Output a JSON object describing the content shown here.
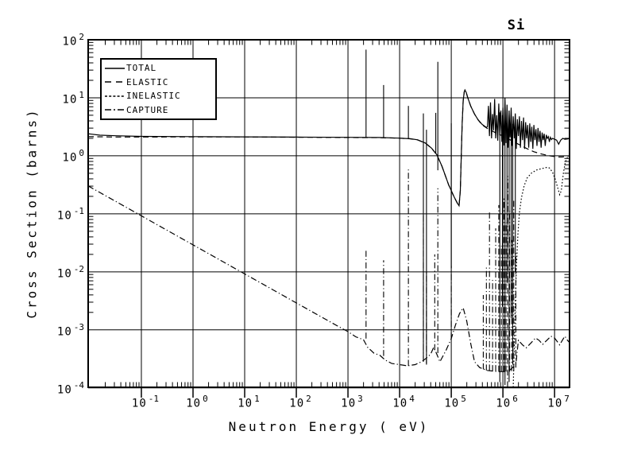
{
  "title": "Si",
  "axes": {
    "x_label": "Neutron Energy ( eV)",
    "y_label": "Cross Section (barns)",
    "x_exponents": [
      -1,
      0,
      1,
      2,
      3,
      4,
      5,
      6,
      7
    ],
    "y_exponents": [
      2,
      1,
      0,
      -1,
      -2,
      -3,
      -4
    ],
    "x_log_range": [
      -2.03,
      7.29
    ],
    "y_log_range": [
      -3.99,
      2.0
    ]
  },
  "legend": {
    "items": [
      {
        "label": "TOTAL",
        "dash": "",
        "sample_dash": ""
      },
      {
        "label": "ELASTIC",
        "dash": "7 4.5",
        "sample_dash": "8 6"
      },
      {
        "label": "INELASTIC",
        "dash": "1.6 2.4",
        "sample_dash": "3 2.2"
      },
      {
        "label": "CAPTURE",
        "dash": "7.5 3 1.2 3",
        "sample_dash": "8 3 2 3"
      }
    ]
  },
  "colors": {
    "line": "#000000",
    "background": "#ffffff"
  },
  "chart_data": {
    "type": "line",
    "title": "Si",
    "xlabel": "Neutron Energy ( eV)",
    "ylabel": "Cross Section (barns)",
    "xscale": "log",
    "yscale": "log",
    "xlim": [
      0.01,
      20000000.0
    ],
    "ylim": [
      0.0001,
      100.0
    ],
    "grid": "major-both",
    "legend_position": "upper-left",
    "units_note": "points are [log10(E eV), log10(sigma barns)]",
    "series": [
      {
        "name": "TOTAL",
        "style": "solid",
        "points": [
          [
            -2.03,
            0.38
          ],
          [
            -1.8,
            0.355
          ],
          [
            -1.5,
            0.345
          ],
          [
            -1,
            0.335
          ],
          [
            0,
            0.33
          ],
          [
            1,
            0.327
          ],
          [
            2,
            0.322
          ],
          [
            3,
            0.318
          ],
          [
            3.6,
            0.315
          ],
          [
            4,
            0.305
          ],
          [
            4.2,
            0.295
          ],
          [
            4.35,
            0.275
          ],
          [
            4.5,
            0.22
          ],
          [
            4.62,
            0.13
          ],
          [
            4.72,
            0.02
          ],
          [
            4.82,
            -0.18
          ],
          [
            4.95,
            -0.5
          ],
          [
            5.05,
            -0.7
          ],
          [
            5.12,
            -0.82
          ],
          [
            5.15,
            -0.86
          ],
          [
            5.175,
            -0.6
          ],
          [
            5.19,
            -0.1
          ],
          [
            5.21,
            0.55
          ],
          [
            5.23,
            0.95
          ],
          [
            5.25,
            1.1
          ],
          [
            5.265,
            1.135
          ],
          [
            5.29,
            1.09
          ],
          [
            5.32,
            1.0
          ],
          [
            5.38,
            0.85
          ],
          [
            5.45,
            0.72
          ],
          [
            5.52,
            0.62
          ],
          [
            5.6,
            0.54
          ],
          [
            5.68,
            0.49
          ],
          [
            5.7,
            0.5
          ],
          [
            5.72,
            0.86
          ],
          [
            5.74,
            0.34
          ],
          [
            5.76,
            0.92
          ],
          [
            5.78,
            0.3
          ],
          [
            5.8,
            0.72
          ],
          [
            5.82,
            0.44
          ],
          [
            5.84,
            0.98
          ],
          [
            5.86,
            0.3
          ],
          [
            5.88,
            0.7
          ],
          [
            5.9,
            0.26
          ],
          [
            5.92,
            0.9
          ],
          [
            5.94,
            0.35
          ],
          [
            5.96,
            0.78
          ],
          [
            5.98,
            0.24
          ],
          [
            6,
            0.83
          ],
          [
            6.02,
            0.18
          ],
          [
            6.04,
            1.0
          ],
          [
            6.06,
            0.22
          ],
          [
            6.08,
            0.88
          ],
          [
            6.1,
            0.14
          ],
          [
            6.12,
            0.78
          ],
          [
            6.14,
            0.32
          ],
          [
            6.16,
            0.83
          ],
          [
            6.18,
            0.17
          ],
          [
            6.2,
            0.68
          ],
          [
            6.22,
            0.3
          ],
          [
            6.24,
            0.73
          ],
          [
            6.26,
            0.12
          ],
          [
            6.28,
            0.63
          ],
          [
            6.3,
            0.34
          ],
          [
            6.32,
            0.68
          ],
          [
            6.34,
            0.14
          ],
          [
            6.36,
            0.6
          ],
          [
            6.38,
            0.27
          ],
          [
            6.4,
            0.66
          ],
          [
            6.42,
            0.12
          ],
          [
            6.44,
            0.58
          ],
          [
            6.46,
            0.3
          ],
          [
            6.48,
            0.53
          ],
          [
            6.5,
            0.14
          ],
          [
            6.52,
            0.56
          ],
          [
            6.54,
            0.24
          ],
          [
            6.56,
            0.5
          ],
          [
            6.58,
            0.12
          ],
          [
            6.6,
            0.53
          ],
          [
            6.62,
            0.27
          ],
          [
            6.64,
            0.46
          ],
          [
            6.66,
            0.17
          ],
          [
            6.68,
            0.48
          ],
          [
            6.7,
            0.24
          ],
          [
            6.72,
            0.43
          ],
          [
            6.74,
            0.14
          ],
          [
            6.76,
            0.4
          ],
          [
            6.78,
            0.27
          ],
          [
            6.8,
            0.38
          ],
          [
            6.82,
            0.17
          ],
          [
            6.84,
            0.36
          ],
          [
            6.86,
            0.3
          ],
          [
            6.88,
            0.33
          ],
          [
            6.9,
            0.24
          ],
          [
            6.92,
            0.32
          ],
          [
            6.94,
            0.28
          ],
          [
            6.96,
            0.3
          ],
          [
            7,
            0.285
          ],
          [
            7.04,
            0.27
          ],
          [
            7.08,
            0.2
          ],
          [
            7.12,
            0.27
          ],
          [
            7.16,
            0.3
          ],
          [
            7.2,
            0.285
          ],
          [
            7.25,
            0.29
          ],
          [
            7.29,
            0.3
          ]
        ]
      },
      {
        "name": "ELASTIC",
        "style": "dash",
        "points": [
          [
            -2.03,
            0.33
          ],
          [
            -1.5,
            0.323
          ],
          [
            -1,
            0.323
          ],
          [
            0,
            0.327
          ],
          [
            1,
            0.325
          ],
          [
            2,
            0.32
          ],
          [
            3,
            0.316
          ],
          [
            3.6,
            0.313
          ],
          [
            4,
            0.303
          ],
          [
            4.2,
            0.293
          ],
          [
            4.35,
            0.273
          ],
          [
            4.5,
            0.218
          ],
          [
            4.62,
            0.128
          ],
          [
            4.72,
            0.018
          ],
          [
            4.82,
            -0.182
          ],
          [
            4.95,
            -0.502
          ],
          [
            5.05,
            -0.702
          ],
          [
            5.12,
            -0.822
          ],
          [
            5.15,
            -0.862
          ],
          [
            5.175,
            -0.602
          ],
          [
            5.19,
            -0.102
          ],
          [
            5.21,
            0.548
          ],
          [
            5.23,
            0.948
          ],
          [
            5.25,
            1.098
          ],
          [
            5.265,
            1.133
          ],
          [
            5.29,
            1.088
          ],
          [
            5.32,
            0.998
          ],
          [
            5.38,
            0.848
          ],
          [
            5.45,
            0.718
          ],
          [
            5.52,
            0.618
          ],
          [
            5.6,
            0.53
          ],
          [
            5.7,
            0.47
          ],
          [
            5.85,
            0.4
          ],
          [
            6,
            0.34
          ],
          [
            6.15,
            0.27
          ],
          [
            6.3,
            0.2
          ],
          [
            6.45,
            0.13
          ],
          [
            6.6,
            0.07
          ],
          [
            6.75,
            0.03
          ],
          [
            6.9,
            0.0
          ],
          [
            7.05,
            -0.02
          ],
          [
            7.15,
            -0.02
          ],
          [
            7.29,
            0.0
          ]
        ]
      },
      {
        "name": "INELASTIC",
        "style": "dot",
        "points": [
          [
            6.2,
            -3.99
          ],
          [
            6.22,
            -3.3
          ],
          [
            6.24,
            -2.55
          ],
          [
            6.26,
            -1.95
          ],
          [
            6.29,
            -1.35
          ],
          [
            6.32,
            -0.98
          ],
          [
            6.36,
            -0.72
          ],
          [
            6.41,
            -0.52
          ],
          [
            6.47,
            -0.38
          ],
          [
            6.55,
            -0.3
          ],
          [
            6.65,
            -0.245
          ],
          [
            6.75,
            -0.22
          ],
          [
            6.85,
            -0.2
          ],
          [
            6.9,
            -0.21
          ],
          [
            6.96,
            -0.28
          ],
          [
            7.02,
            -0.42
          ],
          [
            7.07,
            -0.58
          ],
          [
            7.1,
            -0.67
          ],
          [
            7.13,
            -0.6
          ],
          [
            7.17,
            -0.3
          ],
          [
            7.21,
            -0.1
          ],
          [
            7.25,
            -0.03
          ],
          [
            7.29,
            -0.01
          ]
        ]
      },
      {
        "name": "CAPTURE",
        "style": "dashdot",
        "points": [
          [
            -2.03,
            -0.52
          ],
          [
            -1,
            -1.035
          ],
          [
            0,
            -1.535
          ],
          [
            1,
            -2.035
          ],
          [
            2,
            -2.535
          ],
          [
            2.8,
            -2.935
          ],
          [
            3,
            -3.03
          ],
          [
            3.15,
            -3.12
          ],
          [
            3.3,
            -3.17
          ],
          [
            3.38,
            -3.3
          ],
          [
            3.5,
            -3.4
          ],
          [
            3.62,
            -3.44
          ],
          [
            3.72,
            -3.52
          ],
          [
            3.85,
            -3.58
          ],
          [
            4,
            -3.6
          ],
          [
            4.15,
            -3.62
          ],
          [
            4.3,
            -3.6
          ],
          [
            4.42,
            -3.55
          ],
          [
            4.5,
            -3.5
          ],
          [
            4.6,
            -3.42
          ],
          [
            4.66,
            -3.3
          ],
          [
            4.72,
            -3.42
          ],
          [
            4.78,
            -3.55
          ],
          [
            4.9,
            -3.35
          ],
          [
            5,
            -3.15
          ],
          [
            5.08,
            -2.92
          ],
          [
            5.16,
            -2.72
          ],
          [
            5.23,
            -2.62
          ],
          [
            5.3,
            -2.85
          ],
          [
            5.38,
            -3.25
          ],
          [
            5.45,
            -3.55
          ],
          [
            5.55,
            -3.65
          ],
          [
            5.7,
            -3.7
          ],
          [
            5.9,
            -3.72
          ],
          [
            6.1,
            -3.72
          ],
          [
            6.25,
            -3.6
          ],
          [
            6.3,
            -3.18
          ],
          [
            6.38,
            -3.26
          ],
          [
            6.45,
            -3.31
          ],
          [
            6.55,
            -3.22
          ],
          [
            6.63,
            -3.14
          ],
          [
            6.7,
            -3.18
          ],
          [
            6.77,
            -3.25
          ],
          [
            6.85,
            -3.18
          ],
          [
            6.93,
            -3.11
          ],
          [
            7,
            -3.14
          ],
          [
            7.05,
            -3.2
          ],
          [
            7.1,
            -3.26
          ],
          [
            7.15,
            -3.18
          ],
          [
            7.2,
            -3.11
          ],
          [
            7.25,
            -3.18
          ],
          [
            7.29,
            -3.22
          ]
        ]
      }
    ],
    "resonance_spikes": [
      {
        "series": "TOTAL",
        "x": 3.35,
        "y0": 0.315,
        "y1": 1.83
      },
      {
        "series": "TOTAL",
        "x": 3.69,
        "y0": 0.315,
        "y1": 1.22
      },
      {
        "series": "TOTAL",
        "x": 4.17,
        "y0": 0.3,
        "y1": 0.86
      },
      {
        "series": "TOTAL",
        "x": 4.46,
        "y0": -3.5,
        "y1": 0.73
      },
      {
        "series": "TOTAL",
        "x": 4.52,
        "y0": -3.6,
        "y1": 0.45
      },
      {
        "series": "TOTAL",
        "x": 4.7,
        "y0": 0.05,
        "y1": 0.74
      },
      {
        "series": "TOTAL",
        "x": 4.74,
        "y0": -0.25,
        "y1": 1.62
      },
      {
        "series": "TOTAL",
        "x": 5.0,
        "y0": -1.93,
        "y1": 0.56
      },
      {
        "series": "TOTAL",
        "x": 5.94,
        "y0": -3.9,
        "y1": 0.75
      },
      {
        "series": "TOTAL",
        "x": 5.99,
        "y0": -2.6,
        "y1": 0.7
      },
      {
        "series": "TOTAL",
        "x": 6.04,
        "y0": -3.95,
        "y1": 0.8
      },
      {
        "series": "TOTAL",
        "x": 6.08,
        "y0": -2.2,
        "y1": 0.65
      },
      {
        "series": "TOTAL",
        "x": 6.12,
        "y0": -3.9,
        "y1": 0.7
      },
      {
        "series": "TOTAL",
        "x": 6.16,
        "y0": -2.8,
        "y1": 0.6
      },
      {
        "series": "TOTAL",
        "x": 6.19,
        "y0": -3.6,
        "y1": 0.55
      },
      {
        "series": "TOTAL",
        "x": 6.24,
        "y0": -2.0,
        "y1": 0.55
      },
      {
        "series": "CAPTURE",
        "x": 3.35,
        "y0": -3.15,
        "y1": -1.6
      },
      {
        "series": "CAPTURE",
        "x": 3.69,
        "y0": -3.45,
        "y1": -1.8
      },
      {
        "series": "CAPTURE",
        "x": 4.17,
        "y0": -3.62,
        "y1": -0.23
      },
      {
        "series": "CAPTURE",
        "x": 4.46,
        "y0": -3.55,
        "y1": -1.0
      },
      {
        "series": "CAPTURE",
        "x": 4.52,
        "y0": -3.58,
        "y1": -2.0
      },
      {
        "series": "CAPTURE",
        "x": 4.68,
        "y0": -3.35,
        "y1": -1.7
      },
      {
        "series": "CAPTURE",
        "x": 4.74,
        "y0": -3.4,
        "y1": -0.56
      },
      {
        "series": "CAPTURE",
        "x": 5.0,
        "y0": -3.15,
        "y1": -1.9
      },
      {
        "series": "CAPTURE",
        "x": 5.62,
        "y0": -3.68,
        "y1": -2.4
      },
      {
        "series": "CAPTURE",
        "x": 5.68,
        "y0": -3.7,
        "y1": -1.9
      },
      {
        "series": "CAPTURE",
        "x": 5.74,
        "y0": -3.7,
        "y1": -0.95
      },
      {
        "series": "CAPTURE",
        "x": 5.8,
        "y0": -3.71,
        "y1": -2.1
      },
      {
        "series": "CAPTURE",
        "x": 5.86,
        "y0": -3.71,
        "y1": -1.25
      },
      {
        "series": "CAPTURE",
        "x": 5.92,
        "y0": -3.72,
        "y1": -0.85
      },
      {
        "series": "CAPTURE",
        "x": 5.97,
        "y0": -3.72,
        "y1": -1.55
      },
      {
        "series": "CAPTURE",
        "x": 6.02,
        "y0": -3.72,
        "y1": -0.7
      },
      {
        "series": "CAPTURE",
        "x": 6.06,
        "y0": -3.72,
        "y1": -1.15
      },
      {
        "series": "CAPTURE",
        "x": 6.09,
        "y0": -3.99,
        "y1": -0.35
      },
      {
        "series": "CAPTURE",
        "x": 6.13,
        "y0": -3.72,
        "y1": -0.95
      },
      {
        "series": "CAPTURE",
        "x": 6.17,
        "y0": -3.71,
        "y1": -1.45
      },
      {
        "series": "CAPTURE",
        "x": 6.21,
        "y0": -3.7,
        "y1": -0.75
      },
      {
        "series": "CAPTURE",
        "x": 6.25,
        "y0": -3.65,
        "y1": -1.65
      }
    ]
  }
}
